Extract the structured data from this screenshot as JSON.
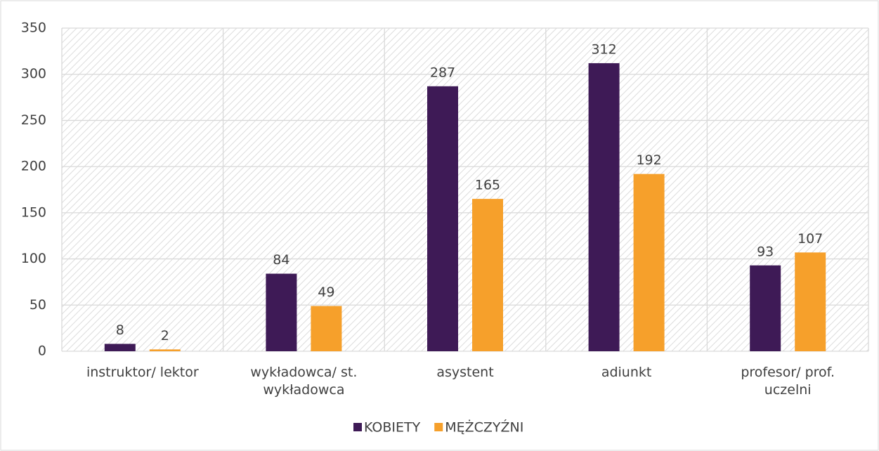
{
  "chart_data": {
    "type": "bar",
    "categories": [
      "instruktor/ lektor",
      "wykładowca/ st. wykładowca",
      "asystent",
      "adiunkt",
      "profesor/ prof. uczelni"
    ],
    "series": [
      {
        "name": "KOBIETY",
        "color": "#3e1a56",
        "values": [
          8,
          84,
          287,
          312,
          93
        ]
      },
      {
        "name": "MĘŻCZYŹNI",
        "color": "#f6a02b",
        "values": [
          2,
          49,
          165,
          192,
          107
        ]
      }
    ],
    "ylim": [
      0,
      350
    ],
    "yticks": [
      0,
      50,
      100,
      150,
      200,
      250,
      300,
      350
    ],
    "grid": true,
    "legend": "bottom"
  }
}
